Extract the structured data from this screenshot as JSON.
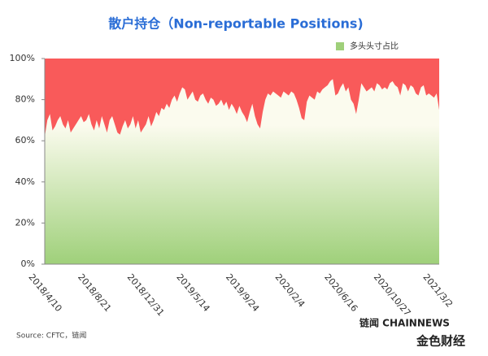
{
  "chart_data": {
    "type": "area",
    "title": "散户持仓（Non-reportable Positions)",
    "source": "Source: CFTC，链闻",
    "watermark": "链闻 CHAINNEWS",
    "watermark2": "金色财经",
    "upper_color": "#f95a5a",
    "legend": "top-right",
    "categories": [
      "2018/4/10",
      null,
      null,
      null,
      null,
      null,
      null,
      null,
      null,
      null,
      null,
      null,
      null,
      null,
      null,
      null,
      null,
      null,
      null,
      "2018/8/21",
      null,
      null,
      null,
      null,
      null,
      null,
      null,
      null,
      null,
      null,
      null,
      null,
      null,
      null,
      null,
      null,
      null,
      null,
      "2018/12/31",
      null,
      null,
      null,
      null,
      null,
      null,
      null,
      null,
      null,
      null,
      null,
      null,
      null,
      null,
      null,
      null,
      null,
      null,
      "2019/5/14",
      null,
      null,
      null,
      null,
      null,
      null,
      null,
      null,
      null,
      null,
      null,
      null,
      null,
      null,
      null,
      null,
      null,
      null,
      "2019/9/24",
      null,
      null,
      null,
      null,
      null,
      null,
      null,
      null,
      null,
      null,
      null,
      null,
      null,
      null,
      null,
      null,
      null,
      null,
      "2020/2/4",
      null,
      null,
      null,
      null,
      null,
      null,
      null,
      null,
      null,
      null,
      null,
      null,
      null,
      null,
      null,
      null,
      null,
      null,
      "2020/6/16",
      null,
      null,
      null,
      null,
      null,
      null,
      null,
      null,
      null,
      null,
      null,
      null,
      null,
      null,
      null,
      null,
      null,
      null,
      "2020/10/27",
      null,
      null,
      null,
      null,
      null,
      null,
      null,
      null,
      null,
      null,
      null,
      null,
      null,
      null,
      null,
      null,
      null,
      null,
      "2021/3/2"
    ],
    "series": [
      {
        "name": "多头头寸占比",
        "color": "#9fd07a",
        "values": [
          62,
          70,
          73,
          65,
          67,
          70,
          72,
          68,
          66,
          70,
          64,
          66,
          68,
          70,
          72,
          69,
          70,
          73,
          68,
          65,
          70,
          66,
          72,
          68,
          64,
          70,
          72,
          68,
          64,
          63,
          67,
          70,
          66,
          68,
          72,
          66,
          70,
          64,
          66,
          68,
          72,
          67,
          70,
          74,
          72,
          76,
          75,
          78,
          76,
          80,
          82,
          79,
          83,
          86,
          85,
          80,
          82,
          84,
          80,
          79,
          82,
          83,
          80,
          78,
          81,
          80,
          77,
          78,
          80,
          77,
          79,
          75,
          78,
          76,
          73,
          77,
          74,
          72,
          69,
          74,
          78,
          72,
          68,
          66,
          74,
          80,
          83,
          82,
          84,
          83,
          82,
          81,
          84,
          83,
          82,
          84,
          83,
          80,
          76,
          71,
          70,
          79,
          82,
          81,
          80,
          84,
          83,
          85,
          86,
          87,
          89,
          90,
          82,
          83,
          86,
          88,
          84,
          86,
          80,
          78,
          73,
          80,
          88,
          86,
          84,
          85,
          86,
          84,
          88,
          87,
          85,
          86,
          85,
          88,
          89,
          87,
          86,
          82,
          88,
          87,
          84,
          87,
          86,
          83,
          82,
          86,
          87,
          82,
          83,
          82,
          81,
          83,
          75
        ]
      }
    ],
    "ylim": [
      0,
      100
    ],
    "yticks": [
      {
        "value": 0,
        "label": "0%"
      },
      {
        "value": 20,
        "label": "20%"
      },
      {
        "value": 40,
        "label": "40%"
      },
      {
        "value": 60,
        "label": "60%"
      },
      {
        "value": 80,
        "label": "80%"
      },
      {
        "value": 100,
        "label": "100%"
      }
    ],
    "grid": false
  }
}
